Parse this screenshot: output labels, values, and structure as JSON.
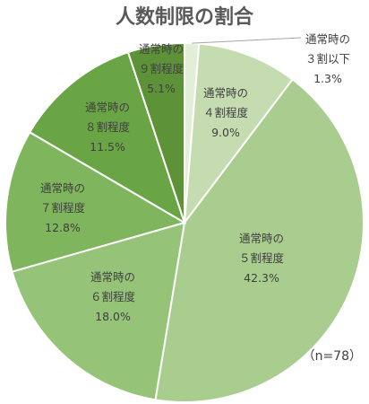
{
  "chart_data": {
    "type": "pie",
    "title": "人数制限の割合",
    "note": "（n=78）",
    "slices": [
      {
        "name": "通常時の\n３割以下",
        "value": 1.3,
        "label": "1.3%",
        "color": "#e2eed8"
      },
      {
        "name": "通常時の\n４割程度",
        "value": 9.0,
        "label": "9.0%",
        "color": "#c5dcb1"
      },
      {
        "name": "通常時の\n５割程度",
        "value": 42.3,
        "label": "42.3%",
        "color": "#a9cd8e"
      },
      {
        "name": "通常時の\n６割程度",
        "value": 18.0,
        "label": "18.0%",
        "color": "#95c378"
      },
      {
        "name": "通常時の\n７割程度",
        "value": 12.8,
        "label": "12.8%",
        "color": "#7fb55d"
      },
      {
        "name": "通常時の\n８割程度",
        "value": 11.5,
        "label": "11.5%",
        "color": "#6aa545"
      },
      {
        "name": "通常時の\n９割程度",
        "value": 5.1,
        "label": "5.1%",
        "color": "#5d9239"
      }
    ]
  }
}
